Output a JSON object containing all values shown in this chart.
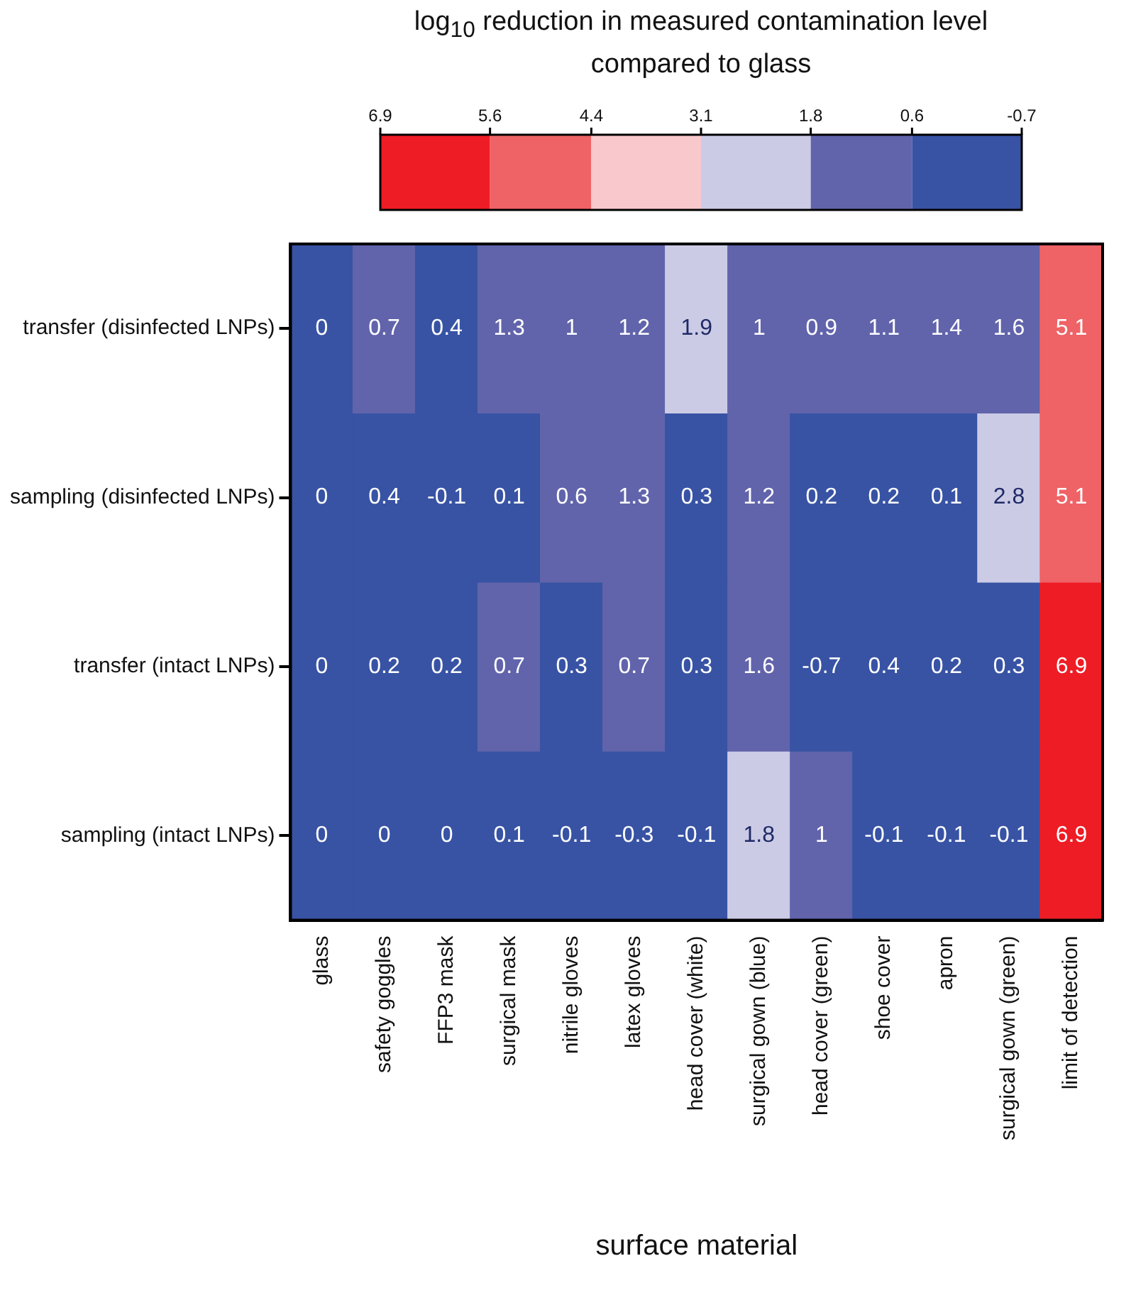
{
  "chart_data": {
    "type": "heatmap",
    "clabel": "log$_{10}$ reduction in measured contamination level compared to glass",
    "xlabel": "surface material",
    "data_labels": true,
    "categories": [
      "glass",
      "safety goggles",
      "FFP3 mask",
      "surgical mask",
      "nitrile gloves",
      "latex gloves",
      "head cover (white)",
      "surgical gown (blue)",
      "head cover (green)",
      "shoe cover",
      "apron",
      "surgical gown (green)",
      "limit of detection"
    ],
    "y_categories": [
      "transfer (disinfected LNPs)",
      "sampling (disinfected LNPs)",
      "transfer (intact LNPs)",
      "sampling (intact LNPs)"
    ],
    "cells": [
      [
        0,
        0.7,
        0.4,
        1.3,
        1,
        1.2,
        1.9,
        1,
        0.9,
        1.1,
        1.4,
        1.6,
        5.1
      ],
      [
        0,
        0.4,
        -0.1,
        0.1,
        0.6,
        1.3,
        0.3,
        1.2,
        0.2,
        0.2,
        0.1,
        2.8,
        5.1
      ],
      [
        0,
        0.2,
        0.2,
        0.7,
        0.3,
        0.7,
        0.3,
        1.6,
        -0.7,
        0.4,
        0.2,
        0.3,
        6.9
      ],
      [
        0,
        0,
        0,
        0.1,
        -0.1,
        -0.3,
        -0.1,
        1.8,
        1,
        -0.1,
        -0.1,
        -0.1,
        6.9
      ]
    ],
    "clim": [
      6.9,
      -0.7
    ],
    "cticks": [
      6.9,
      5.6,
      4.4,
      3.1,
      1.8,
      0.6,
      -0.7
    ],
    "colors": [
      "#ee1c25",
      "#ef6266",
      "#f9c8cd",
      "#cccbe6",
      "#6164ab",
      "#3853a4"
    ]
  }
}
